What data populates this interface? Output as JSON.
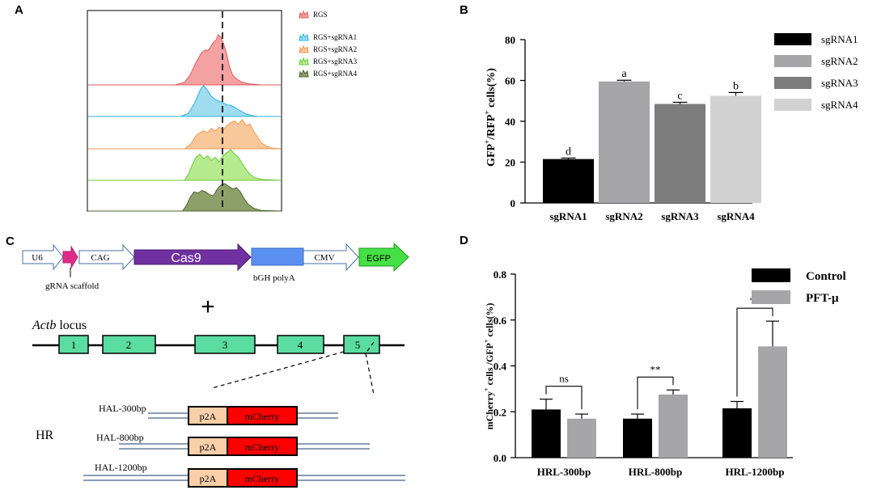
{
  "panels": {
    "A": {
      "letter": "A",
      "legend": [
        "RGS",
        "RGS+sgRNA1",
        "RGS+sgRNA2",
        "RGS+sgRNA3",
        "RGS+sgRNA4"
      ],
      "colors": [
        {
          "fill": "#f4a1a1",
          "stroke": "#e05a5a"
        },
        {
          "fill": "#9fdcf0",
          "stroke": "#2ab4dc"
        },
        {
          "fill": "#f8c79a",
          "stroke": "#ee9a55"
        },
        {
          "fill": "#b6ea8e",
          "stroke": "#6cc83c"
        },
        {
          "fill": "#8ea06a",
          "stroke": "#4d6130"
        }
      ]
    },
    "B": {
      "letter": "B",
      "colors": [
        "#000000",
        "#a6a6a8",
        "#7d7d7d",
        "#d2d2d2"
      ]
    },
    "C": {
      "letter": "C",
      "construct": {
        "u6": "U6",
        "cag": "CAG",
        "cas9": "Cas9",
        "cmv": "CMV",
        "egfp": "EGFP",
        "scaffold_label": "gRNA scaffold",
        "polya_label": "bGH polyA"
      },
      "plus": "+",
      "locus_italic": "Actb",
      "locus_rest": " locus",
      "exons": [
        "1",
        "2",
        "3",
        "4",
        "5"
      ],
      "hr_label": "HR",
      "donors": [
        {
          "name": "HAL-300bp",
          "p2a": "p2A",
          "mcherry": "mCherry"
        },
        {
          "name": "HAL-800bp",
          "p2a": "p2A",
          "mcherry": "mCherry"
        },
        {
          "name": "HAL-1200bp",
          "p2a": "p2A",
          "mcherry": "mCherry"
        }
      ]
    },
    "D": {
      "letter": "D",
      "legend": [
        "Control",
        "PFT-μ"
      ],
      "colors": [
        "#000000",
        "#a6a6a8"
      ],
      "brackets": [
        "ns",
        "**",
        "**"
      ]
    }
  },
  "chart_data": [
    {
      "type": "histogram_overlay",
      "panel": "A",
      "series": [
        "RGS",
        "RGS+sgRNA1",
        "RGS+sgRNA2",
        "RGS+sgRNA3",
        "RGS+sgRNA4"
      ],
      "reference_line": "dashed vertical gate"
    },
    {
      "type": "bar",
      "panel": "B",
      "categories": [
        "sgRNA1",
        "sgRNA2",
        "sgRNA3",
        "sgRNA4"
      ],
      "values": [
        21.5,
        59.5,
        48.5,
        52.5
      ],
      "errors": [
        0.5,
        0.6,
        0.8,
        1.6
      ],
      "labels": [
        "d",
        "a",
        "c",
        "b"
      ],
      "ylabel_main": "GFP",
      "ylabel_sup1": "+",
      "ylabel_mid": "/RFP",
      "ylabel_sup2": "+",
      "ylabel_end": " cells(%)",
      "ylim": [
        0,
        80
      ],
      "yticks": [
        "0",
        "20",
        "40",
        "60",
        "80"
      ],
      "legend": [
        "sgRNA1",
        "sgRNA2",
        "sgRNA3",
        "sgRNA4"
      ]
    },
    {
      "type": "bar",
      "panel": "D",
      "categories": [
        "HRL-300bp",
        "HRL-800bp",
        "HRL-1200bp"
      ],
      "series": [
        {
          "name": "Control",
          "values": [
            0.21,
            0.17,
            0.215
          ],
          "errors": [
            0.045,
            0.02,
            0.03
          ]
        },
        {
          "name": "PFT-μ",
          "values": [
            0.17,
            0.275,
            0.485
          ],
          "errors": [
            0.02,
            0.02,
            0.11
          ]
        }
      ],
      "ylabel_a": "mCherry",
      "ylabel_sup1": "+",
      "ylabel_b": " cells /GFP",
      "ylabel_sup2": "+",
      "ylabel_c": " cells(%)",
      "ylim": [
        0,
        0.8
      ],
      "yticks": [
        "0.0",
        "0.2",
        "0.4",
        "0.6",
        "0.8"
      ]
    }
  ]
}
